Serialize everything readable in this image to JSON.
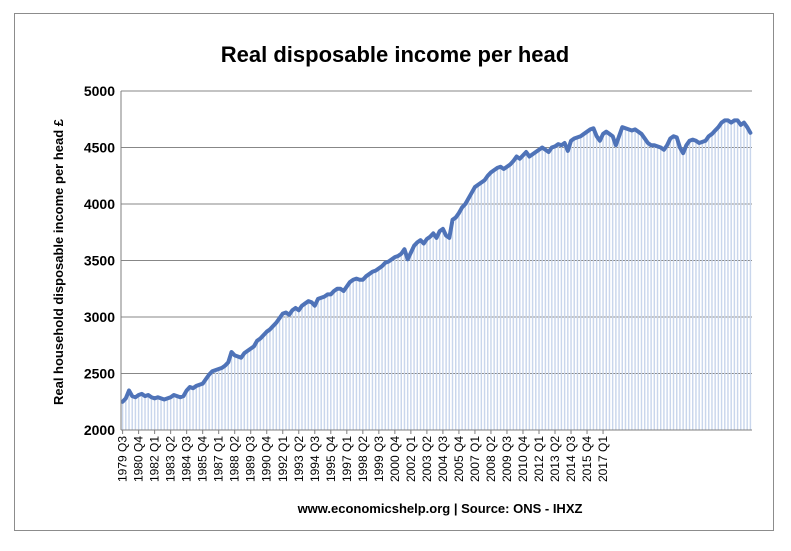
{
  "chart_data": {
    "type": "area",
    "title": "Real disposable income per head",
    "xlabel": "",
    "ylabel": "Real household disposable income per head £",
    "caption": "www.economicshelp.org | Source: ONS - IHXZ",
    "ylim": [
      2000,
      5000
    ],
    "yticks": [
      2000,
      2500,
      3000,
      3500,
      4000,
      4500,
      5000
    ],
    "grid": true,
    "legend": "none",
    "colors": {
      "line": "#4f73b8",
      "fill": "#c9d6ec",
      "grid": "#878787"
    },
    "tick_labels": [
      "1979 Q3",
      "1980 Q4",
      "1982 Q1",
      "1983 Q2",
      "1984 Q3",
      "1985 Q4",
      "1987 Q1",
      "1988 Q2",
      "1989 Q3",
      "1990 Q4",
      "1992 Q1",
      "1993 Q2",
      "1994 Q3",
      "1995 Q4",
      "1997 Q1",
      "1998 Q2",
      "1999 Q3",
      "2000 Q4",
      "2002 Q1",
      "2003 Q2",
      "2004 Q3",
      "2005 Q4",
      "2007 Q1",
      "2008 Q2",
      "2009 Q3",
      "2010 Q4",
      "2012 Q1",
      "2013 Q2",
      "2014 Q3",
      "2015 Q4",
      "2017 Q1"
    ],
    "series": [
      {
        "start": "1979 Q3",
        "end": "2017 Q1",
        "frequency": "quarterly",
        "values": [
          2250,
          2280,
          2350,
          2300,
          2290,
          2310,
          2320,
          2300,
          2310,
          2290,
          2280,
          2290,
          2280,
          2270,
          2280,
          2290,
          2310,
          2300,
          2290,
          2300,
          2350,
          2380,
          2370,
          2390,
          2400,
          2410,
          2450,
          2490,
          2520,
          2530,
          2540,
          2550,
          2570,
          2600,
          2690,
          2660,
          2650,
          2640,
          2680,
          2700,
          2720,
          2740,
          2790,
          2810,
          2840,
          2870,
          2890,
          2920,
          2950,
          2990,
          3030,
          3040,
          3020,
          3060,
          3080,
          3060,
          3100,
          3120,
          3140,
          3130,
          3100,
          3160,
          3170,
          3180,
          3200,
          3200,
          3230,
          3250,
          3250,
          3230,
          3270,
          3310,
          3330,
          3340,
          3330,
          3330,
          3360,
          3380,
          3400,
          3410,
          3430,
          3450,
          3480,
          3490,
          3510,
          3530,
          3540,
          3560,
          3600,
          3510,
          3570,
          3630,
          3660,
          3680,
          3650,
          3690,
          3710,
          3740,
          3700,
          3760,
          3780,
          3720,
          3700,
          3860,
          3880,
          3920,
          3970,
          4000,
          4050,
          4100,
          4150,
          4170,
          4190,
          4210,
          4250,
          4280,
          4300,
          4320,
          4330,
          4310,
          4330,
          4350,
          4380,
          4420,
          4400,
          4430,
          4460,
          4420,
          4440,
          4460,
          4480,
          4500,
          4480,
          4460,
          4500,
          4510,
          4530,
          4520,
          4540,
          4470,
          4560,
          4580,
          4590,
          4600,
          4620,
          4640,
          4660,
          4670,
          4600,
          4560,
          4620,
          4640,
          4620,
          4600,
          4520,
          4600,
          4680,
          4670,
          4660,
          4650,
          4660,
          4640,
          4620,
          4580,
          4540,
          4520,
          4520,
          4510,
          4500,
          4480,
          4520,
          4580,
          4600,
          4590,
          4500,
          4450,
          4520,
          4560,
          4570,
          4560,
          4540,
          4550,
          4560,
          4600,
          4620,
          4650,
          4680,
          4720,
          4740,
          4740,
          4720,
          4740,
          4740,
          4700,
          4720,
          4680,
          4630
        ]
      }
    ]
  }
}
